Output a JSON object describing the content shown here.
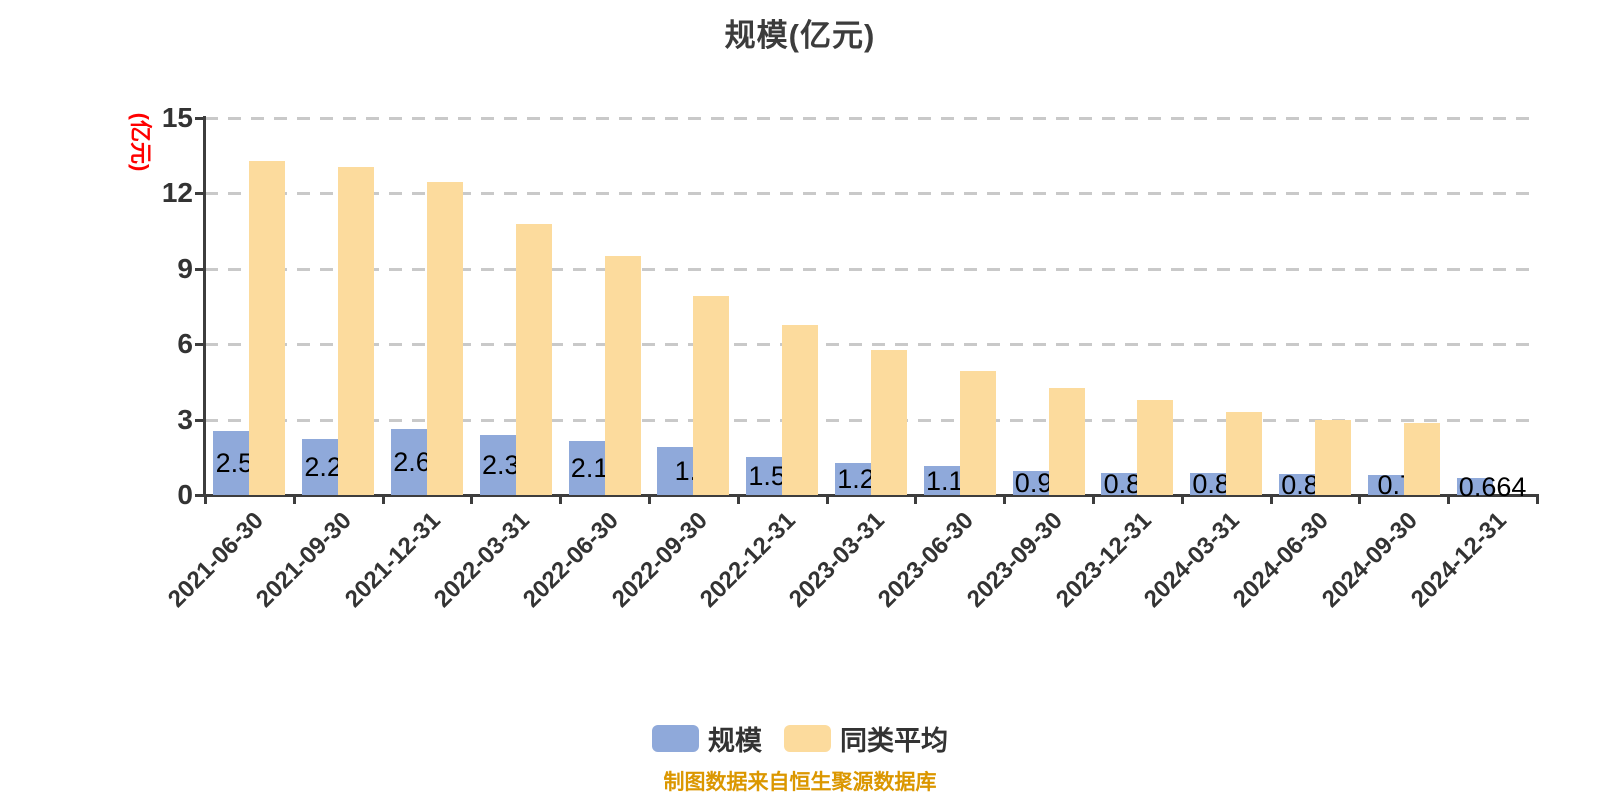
{
  "title": "规模(亿元)",
  "footer": {
    "text": "制图数据来自恒生聚源数据库",
    "color": "#DB9700"
  },
  "colors": {
    "scale_bar": "#8FA9DA",
    "peer_bar": "#FCDB9D",
    "gridline": "#C9C9C9",
    "axis": "#3D3D3D",
    "value_label": "#000000",
    "y_unit": "#FF0000"
  },
  "chart_data": {
    "type": "bar",
    "title": "规模(亿元)",
    "ylabel": "(亿元)",
    "xlabel": "",
    "ylim": [
      0,
      15
    ],
    "y_ticks": [
      0,
      3,
      6,
      9,
      12,
      15
    ],
    "grid": "dashed-horizontal",
    "legend_position": "bottom",
    "categories": [
      "2021-06-30",
      "2021-09-30",
      "2021-12-31",
      "2022-03-31",
      "2022-06-30",
      "2022-09-30",
      "2022-12-31",
      "2023-03-31",
      "2023-06-30",
      "2023-09-30",
      "2023-12-31",
      "2024-03-31",
      "2024-06-30",
      "2024-09-30",
      "2024-12-31"
    ],
    "series": [
      {
        "name": "规模",
        "color": "#8FA9DA",
        "values": [
          2.545,
          2.225,
          2.607,
          2.387,
          2.163,
          1.9,
          1.507,
          1.256,
          1.134,
          0.966,
          0.889,
          0.863,
          0.834,
          0.78,
          0.664
        ],
        "labels": [
          "2.545",
          "2.225",
          "2.607",
          "2.387",
          "2.163",
          "1.9",
          "1.507",
          "1.256",
          "1.134",
          "0.966",
          "0.889",
          "0.863",
          "0.834",
          "0.78",
          "0.664"
        ]
      },
      {
        "name": "同类平均",
        "color": "#FCDB9D",
        "values": [
          13.3,
          13.05,
          12.45,
          10.8,
          9.5,
          7.9,
          6.75,
          5.75,
          4.95,
          4.27,
          3.78,
          3.3,
          2.97,
          2.85,
          null
        ]
      }
    ]
  }
}
